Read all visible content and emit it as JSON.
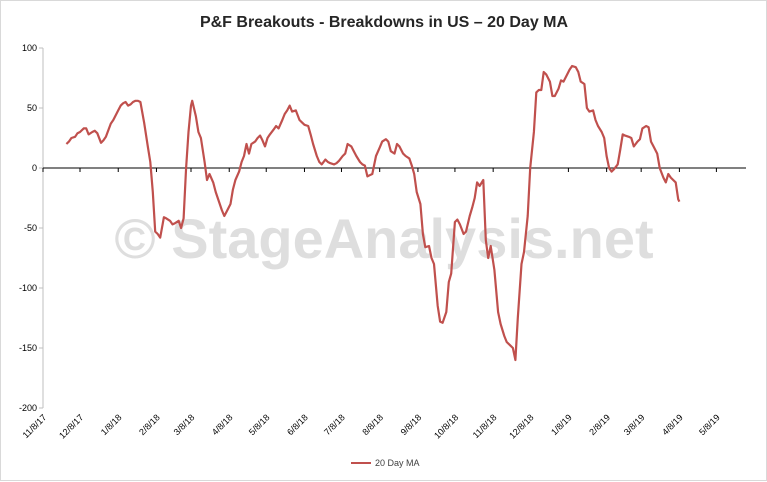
{
  "chart_data": {
    "type": "line",
    "title": "P&F Breakouts - Breakdowns in US – 20 Day MA",
    "watermark": "© StageAnalysis.net",
    "ylim": [
      -200,
      100
    ],
    "yticks": [
      100,
      50,
      0,
      -50,
      -100,
      -150,
      -200
    ],
    "xlim": [
      "2017-11-08",
      "2019-06-01"
    ],
    "xticks": [
      {
        "date": "2017-11-08",
        "label": "11/8/17"
      },
      {
        "date": "2017-12-08",
        "label": "12/8/17"
      },
      {
        "date": "2018-01-08",
        "label": "1/8/18"
      },
      {
        "date": "2018-02-08",
        "label": "2/8/18"
      },
      {
        "date": "2018-03-08",
        "label": "3/8/18"
      },
      {
        "date": "2018-04-08",
        "label": "4/8/18"
      },
      {
        "date": "2018-05-08",
        "label": "5/8/18"
      },
      {
        "date": "2018-06-08",
        "label": "6/8/18"
      },
      {
        "date": "2018-07-08",
        "label": "7/8/18"
      },
      {
        "date": "2018-08-08",
        "label": "8/8/18"
      },
      {
        "date": "2018-09-08",
        "label": "9/8/18"
      },
      {
        "date": "2018-10-08",
        "label": "10/8/18"
      },
      {
        "date": "2018-11-08",
        "label": "11/8/18"
      },
      {
        "date": "2018-12-08",
        "label": "12/8/18"
      },
      {
        "date": "2019-01-08",
        "label": "1/8/19"
      },
      {
        "date": "2019-02-08",
        "label": "2/8/19"
      },
      {
        "date": "2019-03-08",
        "label": "3/8/19"
      },
      {
        "date": "2019-04-08",
        "label": "4/8/19"
      },
      {
        "date": "2019-05-08",
        "label": "5/8/19"
      }
    ],
    "legend": "bottom-center",
    "series": [
      {
        "name": "20 Day MA",
        "color": "#c0504d",
        "points": [
          [
            "2017-11-27",
            20
          ],
          [
            "2017-11-29",
            22
          ],
          [
            "2017-12-01",
            25
          ],
          [
            "2017-12-04",
            26
          ],
          [
            "2017-12-06",
            29
          ],
          [
            "2017-12-08",
            30
          ],
          [
            "2017-12-11",
            33
          ],
          [
            "2017-12-13",
            33
          ],
          [
            "2017-12-15",
            28
          ],
          [
            "2017-12-18",
            30
          ],
          [
            "2017-12-20",
            31
          ],
          [
            "2017-12-22",
            29
          ],
          [
            "2017-12-25",
            21
          ],
          [
            "2017-12-27",
            23
          ],
          [
            "2017-12-29",
            26
          ],
          [
            "2018-01-02",
            37
          ],
          [
            "2018-01-04",
            40
          ],
          [
            "2018-01-08",
            48
          ],
          [
            "2018-01-10",
            52
          ],
          [
            "2018-01-12",
            54
          ],
          [
            "2018-01-14",
            55
          ],
          [
            "2018-01-16",
            52
          ],
          [
            "2018-01-18",
            53
          ],
          [
            "2018-01-20",
            55
          ],
          [
            "2018-01-22",
            56
          ],
          [
            "2018-01-24",
            56
          ],
          [
            "2018-01-26",
            55
          ],
          [
            "2018-01-29",
            38
          ],
          [
            "2018-02-01",
            18
          ],
          [
            "2018-02-03",
            5
          ],
          [
            "2018-02-05",
            -20
          ],
          [
            "2018-02-07",
            -53
          ],
          [
            "2018-02-09",
            -55
          ],
          [
            "2018-02-11",
            -58
          ],
          [
            "2018-02-13",
            -47
          ],
          [
            "2018-02-14",
            -41
          ],
          [
            "2018-02-16",
            -42
          ],
          [
            "2018-02-19",
            -44
          ],
          [
            "2018-02-21",
            -47
          ],
          [
            "2018-02-23",
            -46
          ],
          [
            "2018-02-26",
            -44
          ],
          [
            "2018-02-28",
            -50
          ],
          [
            "2018-03-02",
            -42
          ],
          [
            "2018-03-04",
            0
          ],
          [
            "2018-03-06",
            30
          ],
          [
            "2018-03-08",
            52
          ],
          [
            "2018-03-09",
            56
          ],
          [
            "2018-03-12",
            43
          ],
          [
            "2018-03-14",
            30
          ],
          [
            "2018-03-16",
            25
          ],
          [
            "2018-03-19",
            5
          ],
          [
            "2018-03-21",
            -10
          ],
          [
            "2018-03-23",
            -5
          ],
          [
            "2018-03-26",
            -12
          ],
          [
            "2018-03-28",
            -20
          ],
          [
            "2018-04-02",
            -35
          ],
          [
            "2018-04-04",
            -40
          ],
          [
            "2018-04-06",
            -36
          ],
          [
            "2018-04-09",
            -30
          ],
          [
            "2018-04-11",
            -18
          ],
          [
            "2018-04-13",
            -10
          ],
          [
            "2018-04-16",
            -3
          ],
          [
            "2018-04-18",
            5
          ],
          [
            "2018-04-20",
            10
          ],
          [
            "2018-04-22",
            20
          ],
          [
            "2018-04-24",
            12
          ],
          [
            "2018-04-26",
            20
          ],
          [
            "2018-04-29",
            22
          ],
          [
            "2018-05-01",
            25
          ],
          [
            "2018-05-03",
            27
          ],
          [
            "2018-05-05",
            23
          ],
          [
            "2018-05-07",
            18
          ],
          [
            "2018-05-09",
            25
          ],
          [
            "2018-05-11",
            28
          ],
          [
            "2018-05-14",
            32
          ],
          [
            "2018-05-16",
            35
          ],
          [
            "2018-05-18",
            33
          ],
          [
            "2018-05-21",
            40
          ],
          [
            "2018-05-23",
            45
          ],
          [
            "2018-05-25",
            48
          ],
          [
            "2018-05-27",
            52
          ],
          [
            "2018-05-29",
            47
          ],
          [
            "2018-06-01",
            48
          ],
          [
            "2018-06-04",
            40
          ],
          [
            "2018-06-06",
            38
          ],
          [
            "2018-06-08",
            36
          ],
          [
            "2018-06-11",
            35
          ],
          [
            "2018-06-13",
            28
          ],
          [
            "2018-06-15",
            20
          ],
          [
            "2018-06-18",
            10
          ],
          [
            "2018-06-20",
            5
          ],
          [
            "2018-06-22",
            3
          ],
          [
            "2018-06-25",
            7
          ],
          [
            "2018-06-27",
            5
          ],
          [
            "2018-06-29",
            4
          ],
          [
            "2018-07-02",
            3
          ],
          [
            "2018-07-04",
            4
          ],
          [
            "2018-07-06",
            6
          ],
          [
            "2018-07-09",
            10
          ],
          [
            "2018-07-11",
            12
          ],
          [
            "2018-07-13",
            20
          ],
          [
            "2018-07-16",
            18
          ],
          [
            "2018-07-18",
            14
          ],
          [
            "2018-07-20",
            10
          ],
          [
            "2018-07-23",
            5
          ],
          [
            "2018-07-25",
            3
          ],
          [
            "2018-07-27",
            2
          ],
          [
            "2018-07-29",
            -7
          ],
          [
            "2018-07-31",
            -6
          ],
          [
            "2018-08-02",
            -5
          ],
          [
            "2018-08-05",
            10
          ],
          [
            "2018-08-08",
            17
          ],
          [
            "2018-08-10",
            22
          ],
          [
            "2018-08-13",
            24
          ],
          [
            "2018-08-15",
            22
          ],
          [
            "2018-08-17",
            14
          ],
          [
            "2018-08-20",
            12
          ],
          [
            "2018-08-22",
            20
          ],
          [
            "2018-08-24",
            18
          ],
          [
            "2018-08-27",
            12
          ],
          [
            "2018-08-29",
            10
          ],
          [
            "2018-09-01",
            8
          ],
          [
            "2018-09-03",
            2
          ],
          [
            "2018-09-05",
            -5
          ],
          [
            "2018-09-07",
            -20
          ],
          [
            "2018-09-10",
            -30
          ],
          [
            "2018-09-12",
            -55
          ],
          [
            "2018-09-14",
            -66
          ],
          [
            "2018-09-17",
            -65
          ],
          [
            "2018-09-19",
            -75
          ],
          [
            "2018-09-21",
            -80
          ],
          [
            "2018-09-24",
            -115
          ],
          [
            "2018-09-26",
            -128
          ],
          [
            "2018-09-28",
            -129
          ],
          [
            "2018-10-01",
            -120
          ],
          [
            "2018-10-03",
            -95
          ],
          [
            "2018-10-05",
            -88
          ],
          [
            "2018-10-08",
            -45
          ],
          [
            "2018-10-10",
            -43
          ],
          [
            "2018-10-12",
            -47
          ],
          [
            "2018-10-15",
            -55
          ],
          [
            "2018-10-17",
            -53
          ],
          [
            "2018-10-20",
            -40
          ],
          [
            "2018-10-22",
            -33
          ],
          [
            "2018-10-24",
            -25
          ],
          [
            "2018-10-26",
            -12
          ],
          [
            "2018-10-28",
            -15
          ],
          [
            "2018-10-31",
            -10
          ],
          [
            "2018-11-02",
            -60
          ],
          [
            "2018-11-04",
            -75
          ],
          [
            "2018-11-06",
            -65
          ],
          [
            "2018-11-09",
            -85
          ],
          [
            "2018-11-12",
            -120
          ],
          [
            "2018-11-14",
            -130
          ],
          [
            "2018-11-17",
            -140
          ],
          [
            "2018-11-19",
            -145
          ],
          [
            "2018-11-22",
            -148
          ],
          [
            "2018-11-24",
            -150
          ],
          [
            "2018-11-26",
            -160
          ],
          [
            "2018-11-28",
            -125
          ],
          [
            "2018-12-01",
            -80
          ],
          [
            "2018-12-03",
            -70
          ],
          [
            "2018-12-06",
            -40
          ],
          [
            "2018-12-08",
            0
          ],
          [
            "2018-12-11",
            30
          ],
          [
            "2018-12-13",
            63
          ],
          [
            "2018-12-15",
            65
          ],
          [
            "2018-12-17",
            65
          ],
          [
            "2018-12-19",
            80
          ],
          [
            "2018-12-21",
            78
          ],
          [
            "2018-12-24",
            72
          ],
          [
            "2018-12-26",
            60
          ],
          [
            "2018-12-28",
            60
          ],
          [
            "2018-12-31",
            66
          ],
          [
            "2019-01-02",
            73
          ],
          [
            "2019-01-04",
            72
          ],
          [
            "2019-01-07",
            78
          ],
          [
            "2019-01-09",
            82
          ],
          [
            "2019-01-11",
            85
          ],
          [
            "2019-01-14",
            84
          ],
          [
            "2019-01-16",
            80
          ],
          [
            "2019-01-18",
            72
          ],
          [
            "2019-01-21",
            70
          ],
          [
            "2019-01-23",
            50
          ],
          [
            "2019-01-25",
            47
          ],
          [
            "2019-01-28",
            48
          ],
          [
            "2019-01-30",
            40
          ],
          [
            "2019-02-01",
            35
          ],
          [
            "2019-02-04",
            30
          ],
          [
            "2019-02-06",
            25
          ],
          [
            "2019-02-08",
            10
          ],
          [
            "2019-02-10",
            0
          ],
          [
            "2019-02-12",
            -3
          ],
          [
            "2019-02-14",
            -1
          ],
          [
            "2019-02-17",
            3
          ],
          [
            "2019-02-19",
            15
          ],
          [
            "2019-02-21",
            28
          ],
          [
            "2019-02-23",
            27
          ],
          [
            "2019-02-26",
            26
          ],
          [
            "2019-02-28",
            25
          ],
          [
            "2019-03-02",
            18
          ],
          [
            "2019-03-05",
            22
          ],
          [
            "2019-03-07",
            24
          ],
          [
            "2019-03-09",
            33
          ],
          [
            "2019-03-12",
            35
          ],
          [
            "2019-03-14",
            34
          ],
          [
            "2019-03-16",
            22
          ],
          [
            "2019-03-18",
            18
          ],
          [
            "2019-03-21",
            12
          ],
          [
            "2019-03-23",
            0
          ],
          [
            "2019-03-26",
            -8
          ],
          [
            "2019-03-28",
            -12
          ],
          [
            "2019-03-30",
            -5
          ],
          [
            "2019-04-01",
            -8
          ],
          [
            "2019-04-03",
            -10
          ],
          [
            "2019-04-05",
            -12
          ],
          [
            "2019-04-07",
            -26
          ],
          [
            "2019-04-08",
            -28
          ]
        ]
      }
    ]
  }
}
